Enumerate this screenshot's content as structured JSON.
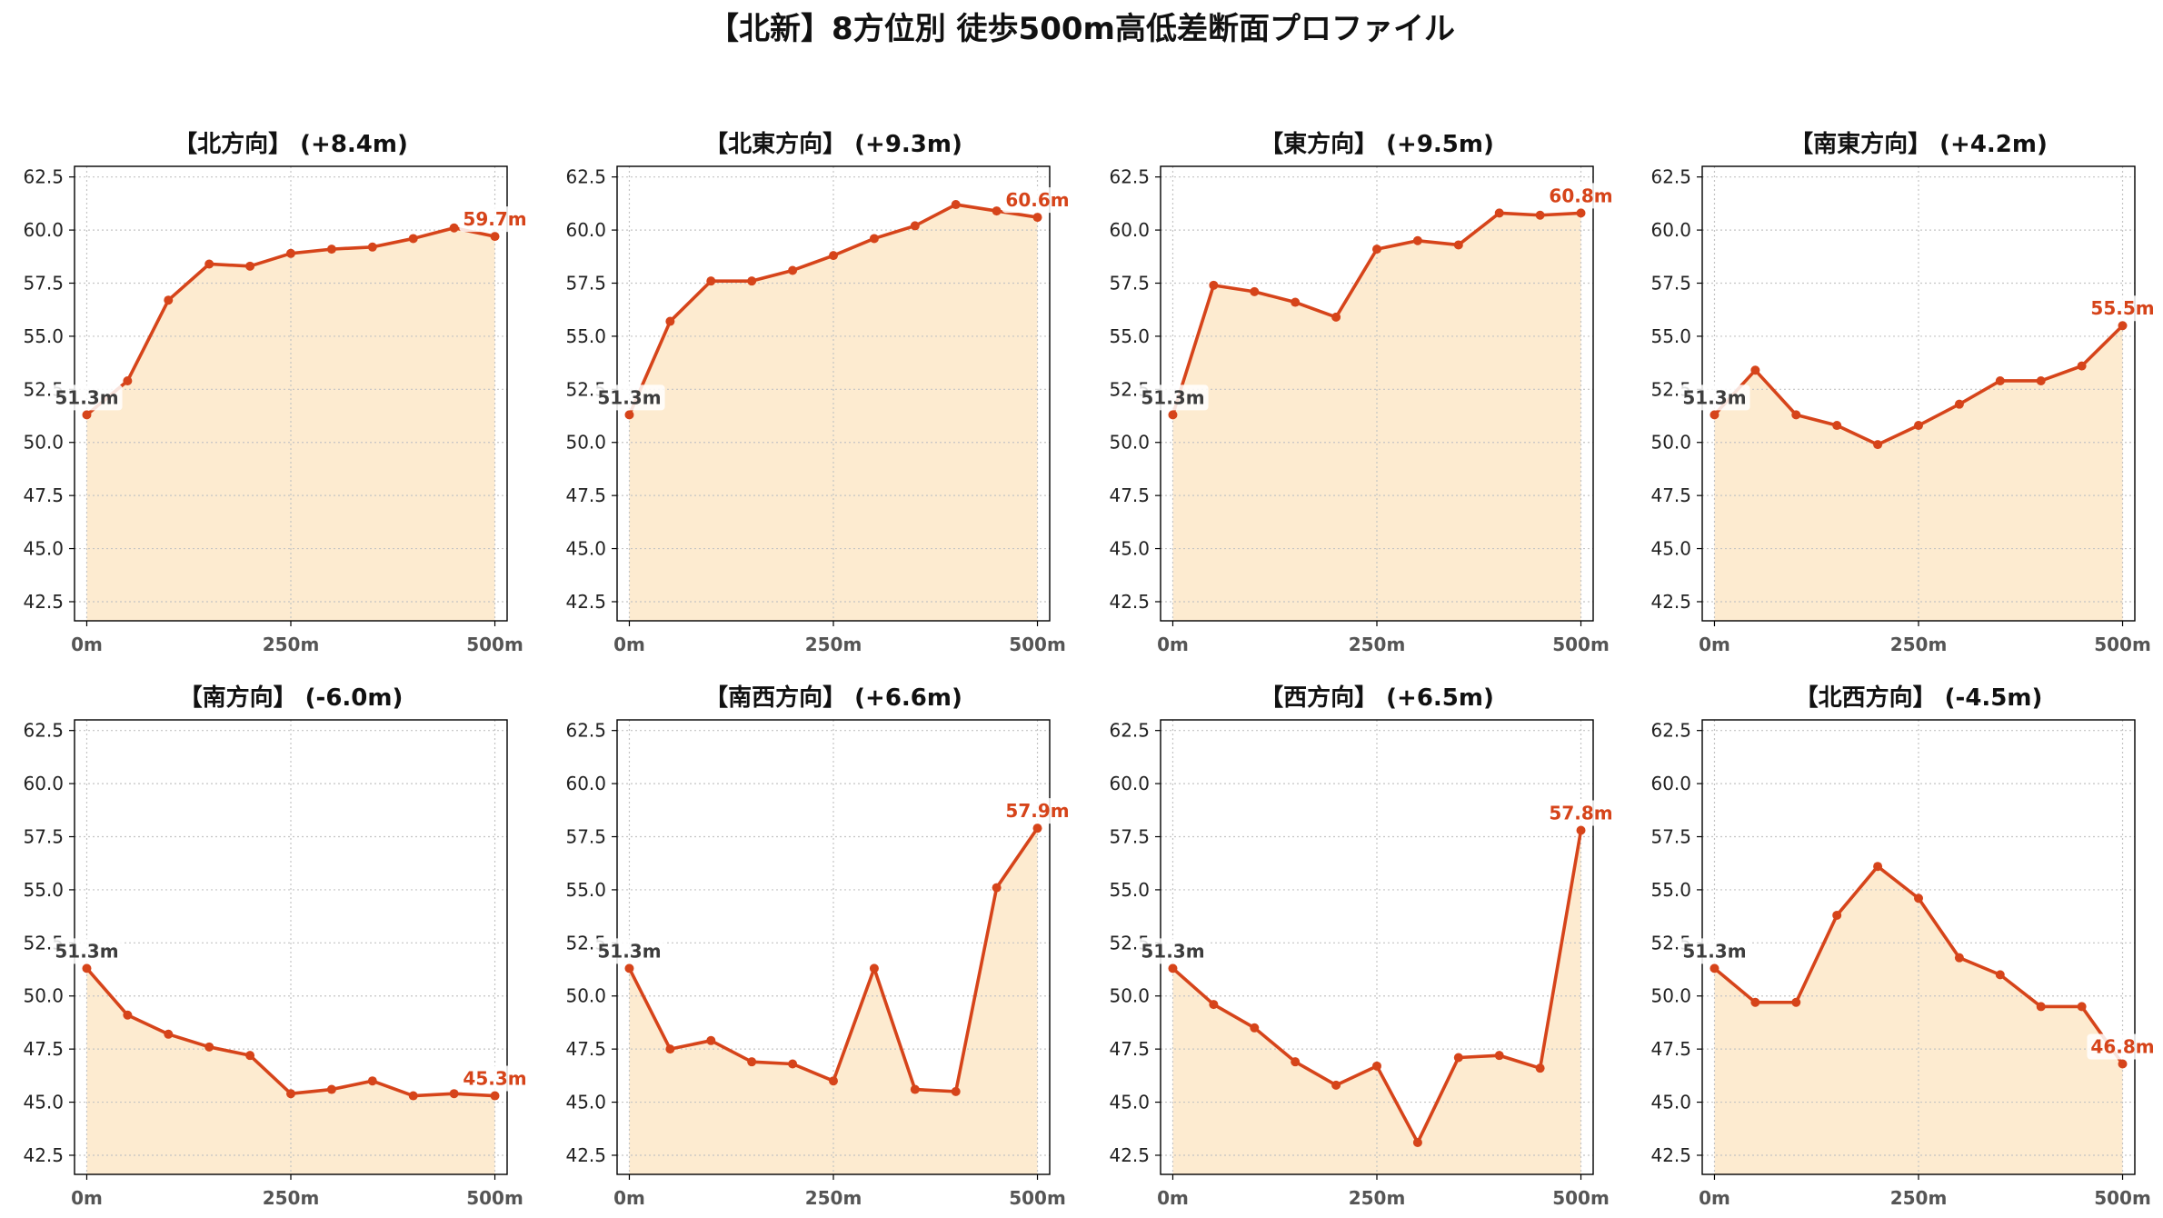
{
  "title": "【北新】8方位別 徒歩500m高低差断面プロファイル",
  "colors": {
    "line": "#d6441a",
    "fill": "#fdebd0",
    "start_label": "#3d3d3d",
    "end_label": "#d6441a"
  },
  "chart_data": [
    {
      "type": "area",
      "title": "【北方向】 (+8.4m)",
      "x": [
        0,
        50,
        100,
        150,
        200,
        250,
        300,
        350,
        400,
        450,
        500
      ],
      "y": [
        51.3,
        52.9,
        56.7,
        58.4,
        58.3,
        58.9,
        59.1,
        59.2,
        59.6,
        60.1,
        59.7
      ],
      "start_label": "51.3m",
      "end_label": "59.7m",
      "xlim": [
        -15,
        515
      ],
      "ylim": [
        41.6,
        63.0
      ],
      "xtick_values": [
        0,
        250,
        500
      ],
      "xtick_labels": [
        "0m",
        "250m",
        "500m"
      ],
      "yticks": [
        "42.5",
        "45.0",
        "47.5",
        "50.0",
        "52.5",
        "55.0",
        "57.5",
        "60.0",
        "62.5"
      ],
      "grid": true
    },
    {
      "type": "area",
      "title": "【北東方向】 (+9.3m)",
      "x": [
        0,
        50,
        100,
        150,
        200,
        250,
        300,
        350,
        400,
        450,
        500
      ],
      "y": [
        51.3,
        55.7,
        57.6,
        57.6,
        58.1,
        58.8,
        59.6,
        60.2,
        61.2,
        60.9,
        60.6
      ],
      "start_label": "51.3m",
      "end_label": "60.6m",
      "xlim": [
        -15,
        515
      ],
      "ylim": [
        41.6,
        63.0
      ],
      "xtick_values": [
        0,
        250,
        500
      ],
      "xtick_labels": [
        "0m",
        "250m",
        "500m"
      ],
      "yticks": [
        "42.5",
        "45.0",
        "47.5",
        "50.0",
        "52.5",
        "55.0",
        "57.5",
        "60.0",
        "62.5"
      ],
      "grid": true
    },
    {
      "type": "area",
      "title": "【東方向】 (+9.5m)",
      "x": [
        0,
        50,
        100,
        150,
        200,
        250,
        300,
        350,
        400,
        450,
        500
      ],
      "y": [
        51.3,
        57.4,
        57.1,
        56.6,
        55.9,
        59.1,
        59.5,
        59.3,
        60.8,
        60.7,
        60.8
      ],
      "start_label": "51.3m",
      "end_label": "60.8m",
      "xlim": [
        -15,
        515
      ],
      "ylim": [
        41.6,
        63.0
      ],
      "xtick_values": [
        0,
        250,
        500
      ],
      "xtick_labels": [
        "0m",
        "250m",
        "500m"
      ],
      "yticks": [
        "42.5",
        "45.0",
        "47.5",
        "50.0",
        "52.5",
        "55.0",
        "57.5",
        "60.0",
        "62.5"
      ],
      "grid": true
    },
    {
      "type": "area",
      "title": "【南東方向】 (+4.2m)",
      "x": [
        0,
        50,
        100,
        150,
        200,
        250,
        300,
        350,
        400,
        450,
        500
      ],
      "y": [
        51.3,
        53.4,
        51.3,
        50.8,
        49.9,
        50.8,
        51.8,
        52.9,
        52.9,
        53.6,
        55.5
      ],
      "start_label": "51.3m",
      "end_label": "55.5m",
      "xlim": [
        -15,
        515
      ],
      "ylim": [
        41.6,
        63.0
      ],
      "xtick_values": [
        0,
        250,
        500
      ],
      "xtick_labels": [
        "0m",
        "250m",
        "500m"
      ],
      "yticks": [
        "42.5",
        "45.0",
        "47.5",
        "50.0",
        "52.5",
        "55.0",
        "57.5",
        "60.0",
        "62.5"
      ],
      "grid": true
    },
    {
      "type": "area",
      "title": "【南方向】 (-6.0m)",
      "x": [
        0,
        50,
        100,
        150,
        200,
        250,
        300,
        350,
        400,
        450,
        500
      ],
      "y": [
        51.3,
        49.1,
        48.2,
        47.6,
        47.2,
        45.4,
        45.6,
        46.0,
        45.3,
        45.4,
        45.3
      ],
      "start_label": "51.3m",
      "end_label": "45.3m",
      "xlim": [
        -15,
        515
      ],
      "ylim": [
        41.6,
        63.0
      ],
      "xtick_values": [
        0,
        250,
        500
      ],
      "xtick_labels": [
        "0m",
        "250m",
        "500m"
      ],
      "yticks": [
        "42.5",
        "45.0",
        "47.5",
        "50.0",
        "52.5",
        "55.0",
        "57.5",
        "60.0",
        "62.5"
      ],
      "grid": true
    },
    {
      "type": "area",
      "title": "【南西方向】 (+6.6m)",
      "x": [
        0,
        50,
        100,
        150,
        200,
        250,
        300,
        350,
        400,
        450,
        500
      ],
      "y": [
        51.3,
        47.5,
        47.9,
        46.9,
        46.8,
        46.0,
        51.3,
        45.6,
        45.5,
        55.1,
        57.9
      ],
      "start_label": "51.3m",
      "end_label": "57.9m",
      "xlim": [
        -15,
        515
      ],
      "ylim": [
        41.6,
        63.0
      ],
      "xtick_values": [
        0,
        250,
        500
      ],
      "xtick_labels": [
        "0m",
        "250m",
        "500m"
      ],
      "yticks": [
        "42.5",
        "45.0",
        "47.5",
        "50.0",
        "52.5",
        "55.0",
        "57.5",
        "60.0",
        "62.5"
      ],
      "grid": true
    },
    {
      "type": "area",
      "title": "【西方向】 (+6.5m)",
      "x": [
        0,
        50,
        100,
        150,
        200,
        250,
        300,
        350,
        400,
        450,
        500
      ],
      "y": [
        51.3,
        49.6,
        48.5,
        46.9,
        45.8,
        46.7,
        43.1,
        47.1,
        47.2,
        46.6,
        57.8
      ],
      "start_label": "51.3m",
      "end_label": "57.8m",
      "xlim": [
        -15,
        515
      ],
      "ylim": [
        41.6,
        63.0
      ],
      "xtick_values": [
        0,
        250,
        500
      ],
      "xtick_labels": [
        "0m",
        "250m",
        "500m"
      ],
      "yticks": [
        "42.5",
        "45.0",
        "47.5",
        "50.0",
        "52.5",
        "55.0",
        "57.5",
        "60.0",
        "62.5"
      ],
      "grid": true
    },
    {
      "type": "area",
      "title": "【北西方向】 (-4.5m)",
      "x": [
        0,
        50,
        100,
        150,
        200,
        250,
        300,
        350,
        400,
        450,
        500
      ],
      "y": [
        51.3,
        49.7,
        49.7,
        53.8,
        56.1,
        54.6,
        51.8,
        51.0,
        49.5,
        49.5,
        46.8
      ],
      "start_label": "51.3m",
      "end_label": "46.8m",
      "xlim": [
        -15,
        515
      ],
      "ylim": [
        41.6,
        63.0
      ],
      "xtick_values": [
        0,
        250,
        500
      ],
      "xtick_labels": [
        "0m",
        "250m",
        "500m"
      ],
      "yticks": [
        "42.5",
        "45.0",
        "47.5",
        "50.0",
        "52.5",
        "55.0",
        "57.5",
        "60.0",
        "62.5"
      ],
      "grid": true
    }
  ]
}
